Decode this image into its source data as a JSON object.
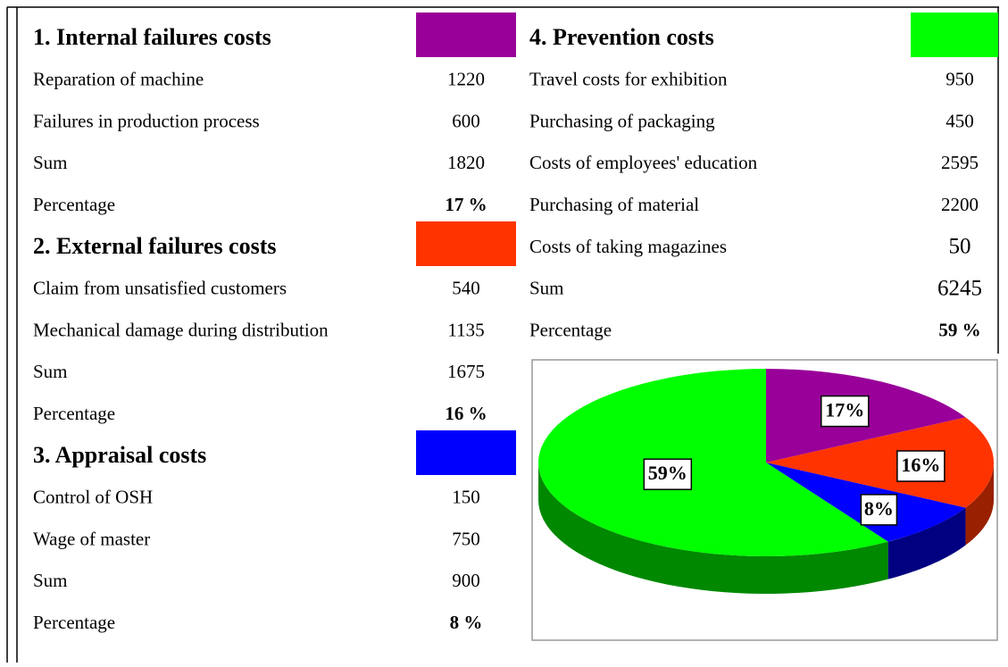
{
  "sections": [
    {
      "title": "1. Internal  failures costs",
      "color": "#990099",
      "items": [
        {
          "label": "Reparation of machine",
          "value": "1220"
        },
        {
          "label": "Failures in production process",
          "value": "600"
        },
        {
          "label": "Sum",
          "value": "1820"
        },
        {
          "label": "Percentage",
          "value": "17 %"
        }
      ]
    },
    {
      "title": "2. External failures costs",
      "color": "#ff3300",
      "items": [
        {
          "label": "Claim from unsatisfied customers",
          "value": "540"
        },
        {
          "label": "Mechanical damage during distribution",
          "value": "1135"
        },
        {
          "label": "Sum",
          "value": "1675"
        },
        {
          "label": "Percentage",
          "value": "16 %"
        }
      ]
    },
    {
      "title": "3. Appraisal costs",
      "color": "#0000ff",
      "items": [
        {
          "label": "Control of OSH",
          "value": "150"
        },
        {
          "label": "Wage of master",
          "value": "750"
        },
        {
          "label": "Sum",
          "value": "900"
        },
        {
          "label": "Percentage",
          "value": "8 %"
        }
      ]
    },
    {
      "title": "4. Prevention costs",
      "color": "#00ff00",
      "items": [
        {
          "label": "Travel costs for exhibition",
          "value": "950"
        },
        {
          "label": "Purchasing of packaging",
          "value": "450"
        },
        {
          "label": "Costs of employees' education",
          "value": "2595"
        },
        {
          "label": "Purchasing of material",
          "value": "2200"
        },
        {
          "label": "Costs of taking magazines",
          "value": "50"
        },
        {
          "label": "Sum",
          "value": "6245"
        },
        {
          "label": "Percentage",
          "value": "59 %"
        }
      ]
    }
  ],
  "chart_data": {
    "type": "pie",
    "values": [
      17,
      16,
      8,
      59
    ],
    "value_labels": [
      "17%",
      "16%",
      "8%",
      "59%"
    ],
    "colors": [
      "#990099",
      "#ff3300",
      "#0000ff",
      "#00ff00"
    ],
    "side_colors": [
      "#660066",
      "#992000",
      "#000080",
      "#008800"
    ]
  }
}
